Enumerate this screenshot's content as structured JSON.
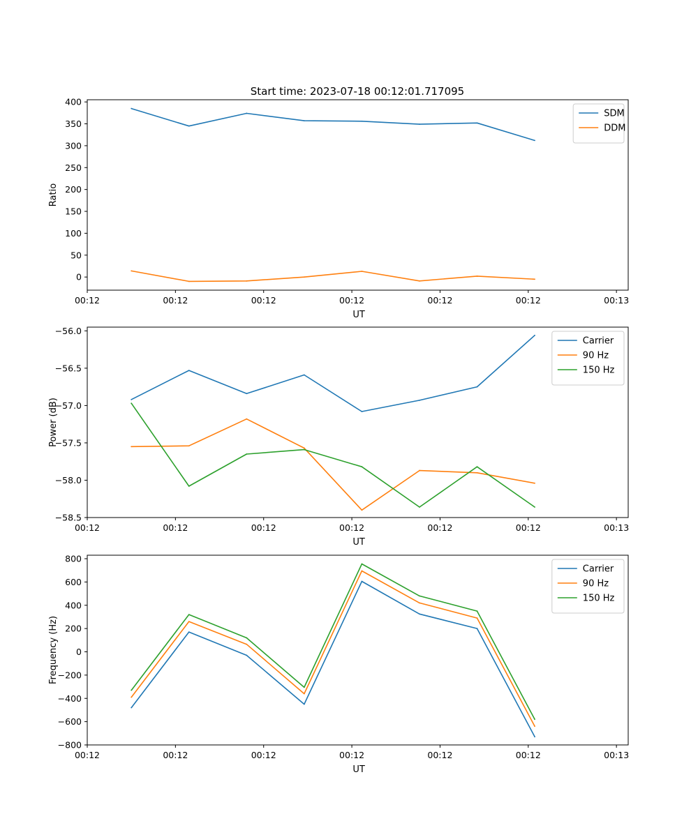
{
  "figure_title": "Start time: 2023-07-18 00:12:01.717095",
  "chart_data": [
    {
      "type": "line",
      "xlabel": "UT",
      "ylabel": "Ratio",
      "xlim": [
        0,
        9.2
      ],
      "ylim": [
        -30,
        405
      ],
      "x_ticks": [
        0,
        1.5,
        3,
        4.5,
        6,
        7.5,
        9
      ],
      "x_tick_labels": [
        "00:12",
        "00:12",
        "00:12",
        "00:12",
        "00:12",
        "00:12",
        "00:13"
      ],
      "y_ticks": [
        0,
        50,
        100,
        150,
        200,
        250,
        300,
        350,
        400
      ],
      "y_tick_labels": [
        "0",
        "50",
        "100",
        "150",
        "200",
        "250",
        "300",
        "350",
        "400"
      ],
      "x": [
        0.75,
        1.73,
        2.71,
        3.69,
        4.67,
        5.65,
        6.63,
        7.61
      ],
      "legend_loc": "top-right",
      "series": [
        {
          "name": "SDM",
          "color": "#1f77b4",
          "values": [
            385,
            345,
            374,
            357,
            356,
            349,
            352,
            312
          ]
        },
        {
          "name": "DDM",
          "color": "#ff7f0e",
          "values": [
            14,
            -10,
            -9,
            0,
            13,
            -9,
            2,
            -5
          ]
        }
      ]
    },
    {
      "type": "line",
      "xlabel": "UT",
      "ylabel": "Power (dB)",
      "xlim": [
        0,
        9.2
      ],
      "ylim": [
        -58.5,
        -55.95
      ],
      "x_ticks": [
        0,
        1.5,
        3,
        4.5,
        6,
        7.5,
        9
      ],
      "x_tick_labels": [
        "00:12",
        "00:12",
        "00:12",
        "00:12",
        "00:12",
        "00:12",
        "00:13"
      ],
      "y_ticks": [
        -58.5,
        -58.0,
        -57.5,
        -57.0,
        -56.5,
        -56.0
      ],
      "y_tick_labels": [
        "−58.5",
        "−58.0",
        "−57.5",
        "−57.0",
        "−56.5",
        "−56.0"
      ],
      "x": [
        0.75,
        1.73,
        2.71,
        3.69,
        4.67,
        5.65,
        6.63,
        7.61
      ],
      "legend_loc": "top-right",
      "series": [
        {
          "name": "Carrier",
          "color": "#1f77b4",
          "values": [
            -56.92,
            -56.53,
            -56.84,
            -56.59,
            -57.08,
            -56.93,
            -56.75,
            -56.06
          ]
        },
        {
          "name": "90 Hz",
          "color": "#ff7f0e",
          "values": [
            -57.55,
            -57.54,
            -57.18,
            -57.57,
            -58.4,
            -57.87,
            -57.9,
            -58.04
          ]
        },
        {
          "name": "150 Hz",
          "color": "#2ca02c",
          "values": [
            -56.97,
            -58.08,
            -57.65,
            -57.59,
            -57.82,
            -58.36,
            -57.82,
            -58.36
          ]
        }
      ]
    },
    {
      "type": "line",
      "xlabel": "UT",
      "ylabel": "Frequency (Hz)",
      "xlim": [
        0,
        9.2
      ],
      "ylim": [
        -800,
        830
      ],
      "x_ticks": [
        0,
        1.5,
        3,
        4.5,
        6,
        7.5,
        9
      ],
      "x_tick_labels": [
        "00:12",
        "00:12",
        "00:12",
        "00:12",
        "00:12",
        "00:12",
        "00:13"
      ],
      "y_ticks": [
        -800,
        -600,
        -400,
        -200,
        0,
        200,
        400,
        600,
        800
      ],
      "y_tick_labels": [
        "−800",
        "−600",
        "−400",
        "−200",
        "0",
        "200",
        "400",
        "600",
        "800"
      ],
      "x": [
        0.75,
        1.73,
        2.71,
        3.69,
        4.67,
        5.65,
        6.63,
        7.61
      ],
      "legend_loc": "top-right",
      "series": [
        {
          "name": "Carrier",
          "color": "#1f77b4",
          "values": [
            -480,
            170,
            -30,
            -450,
            605,
            325,
            200,
            -730
          ]
        },
        {
          "name": "90 Hz",
          "color": "#ff7f0e",
          "values": [
            -390,
            260,
            65,
            -360,
            695,
            420,
            290,
            -640
          ]
        },
        {
          "name": "150 Hz",
          "color": "#2ca02c",
          "values": [
            -330,
            320,
            120,
            -305,
            755,
            480,
            350,
            -580
          ]
        }
      ]
    }
  ]
}
